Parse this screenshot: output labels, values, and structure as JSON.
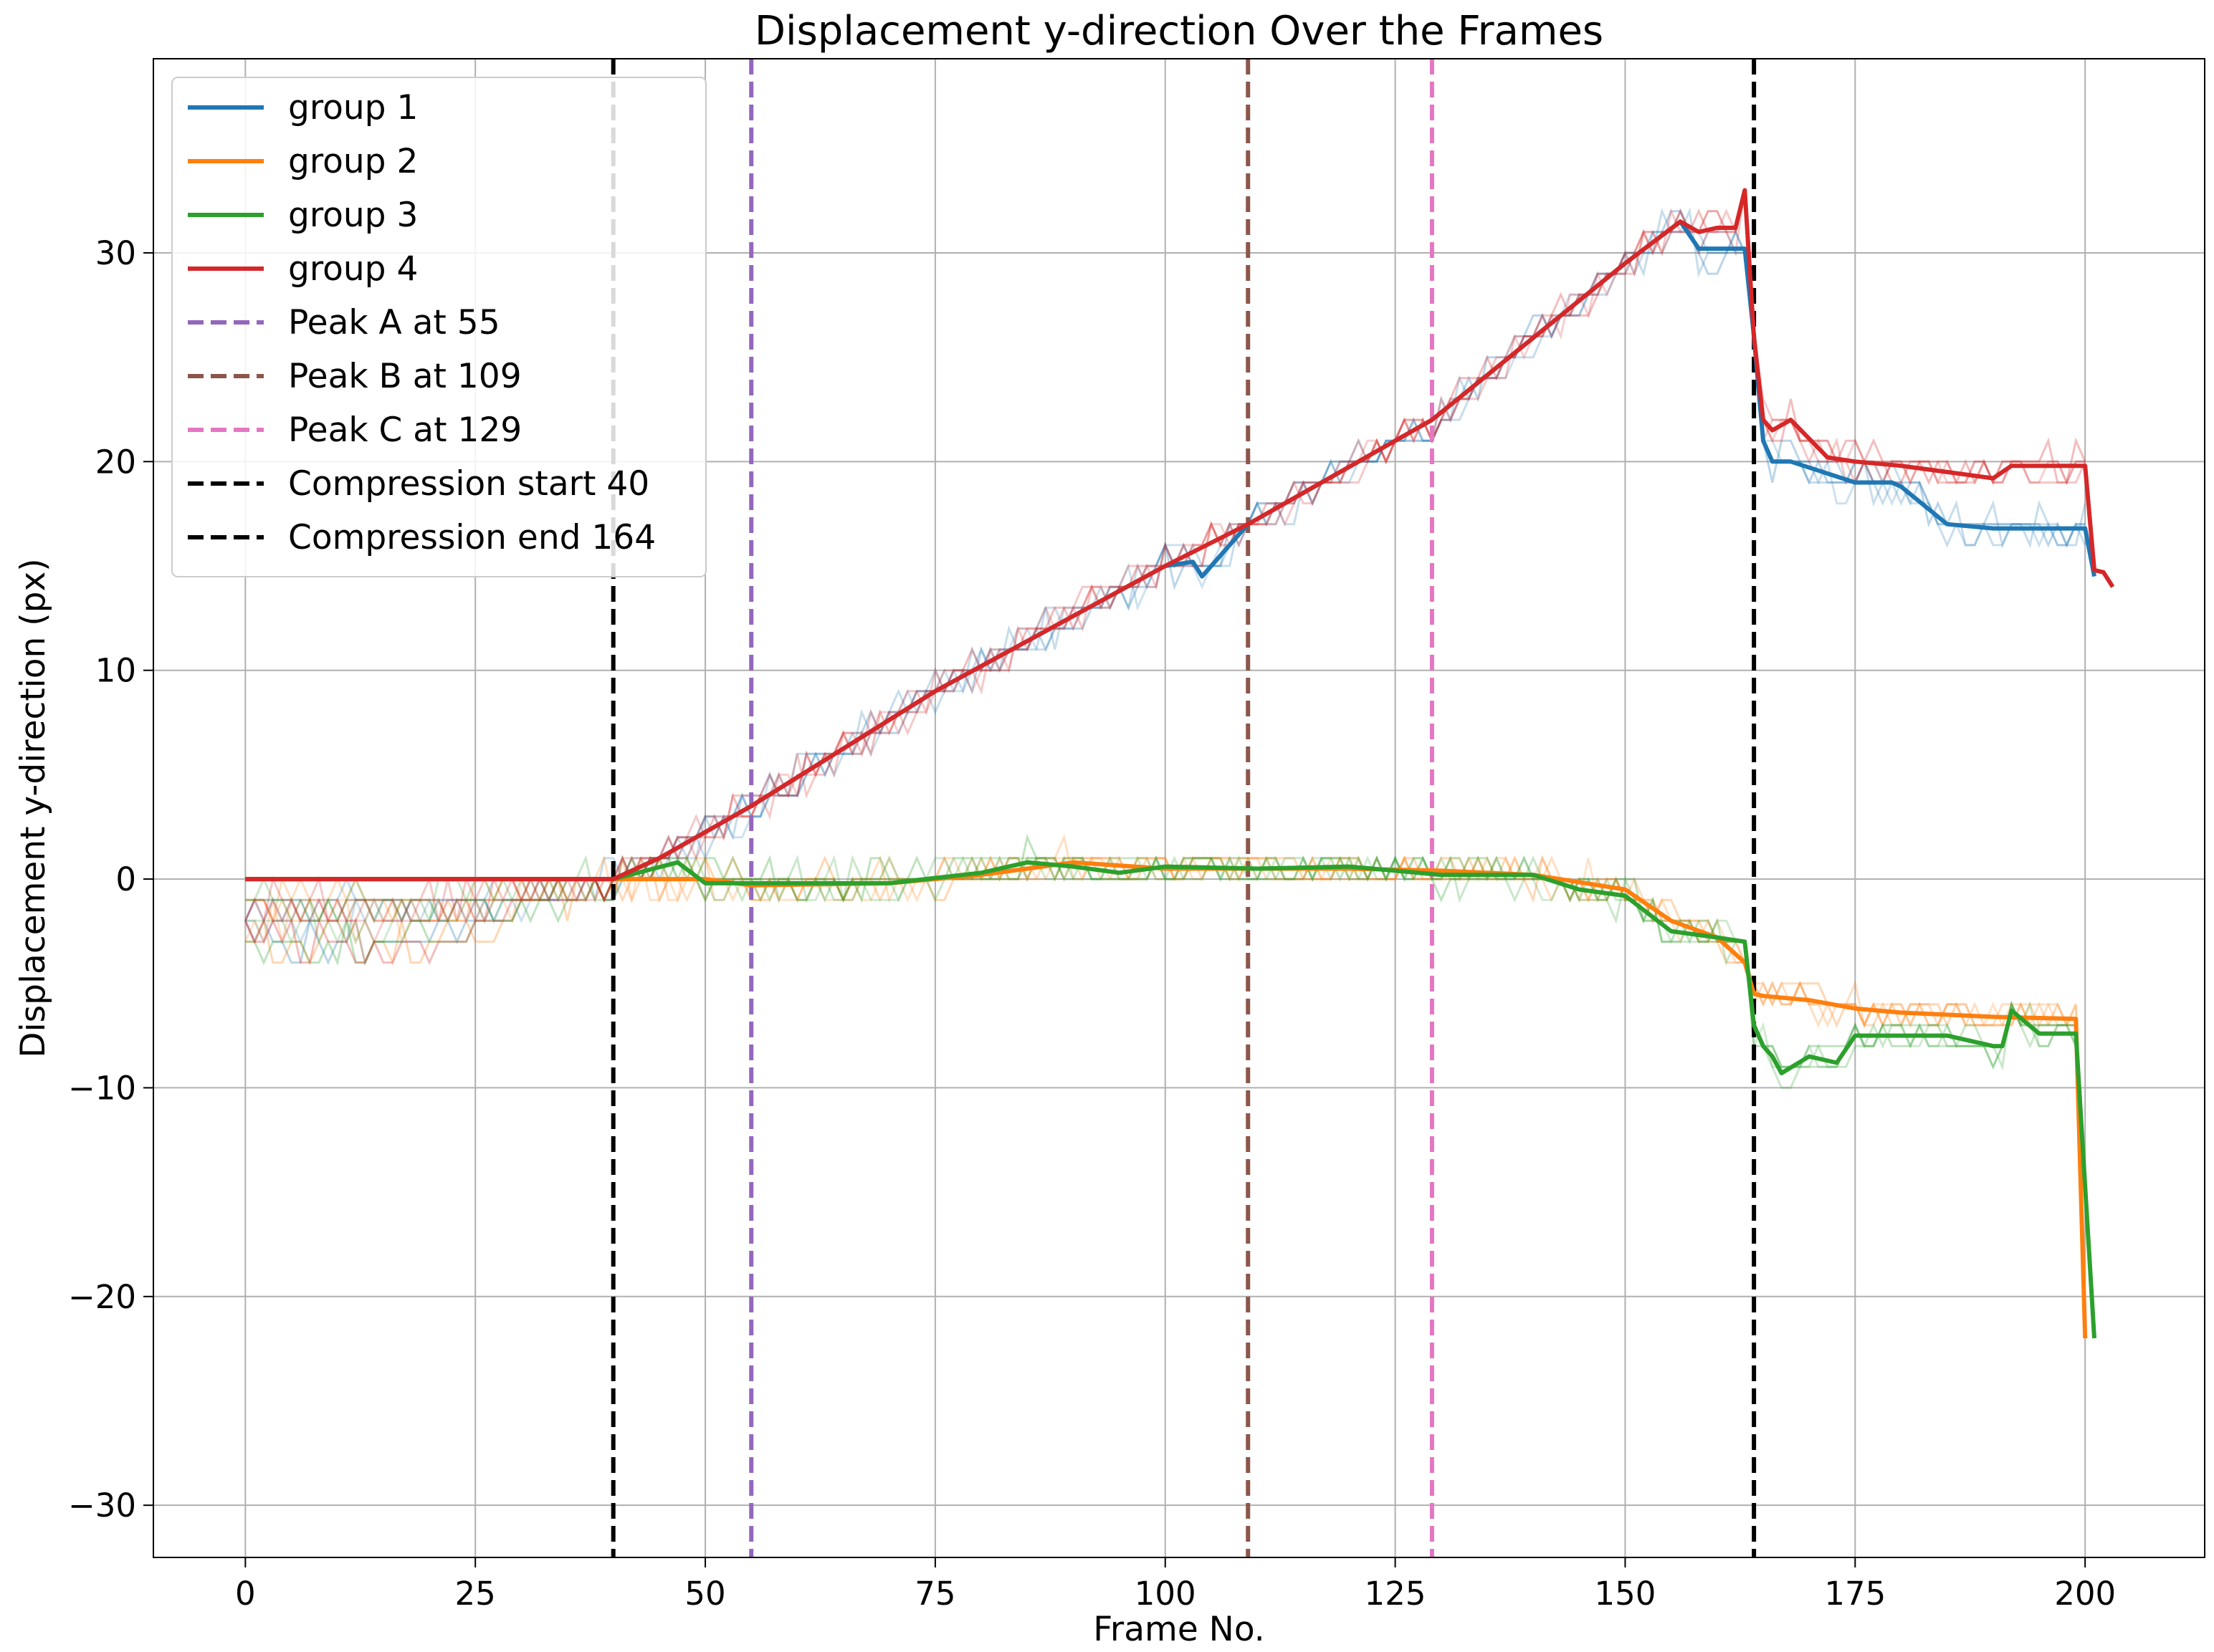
{
  "chart_data": {
    "type": "line",
    "title": "Displacement y-direction Over the Frames",
    "xlabel": "Frame No.",
    "ylabel": "Displacement y-direction (px)",
    "xlim": [
      -10,
      213
    ],
    "ylim": [
      -32.5,
      39.3
    ],
    "x_ticks": [
      0,
      25,
      50,
      75,
      100,
      125,
      150,
      175,
      200
    ],
    "y_ticks": [
      -30,
      -20,
      -10,
      0,
      10,
      20,
      30
    ],
    "y_tick_labels": [
      "−30",
      "−20",
      "−10",
      "0",
      "10",
      "20",
      "30"
    ],
    "grid": true,
    "legend_position": "upper-left",
    "colors": {
      "group1": "#1f77b4",
      "group2": "#ff7f0e",
      "group3": "#2ca02c",
      "group4": "#d62728",
      "peakA": "#9467bd",
      "peakB": "#8c564b",
      "peakC": "#e377c2",
      "compression": "#000000"
    },
    "legend": [
      {
        "label": "group 1",
        "color": "#1f77b4",
        "dashed": false
      },
      {
        "label": "group 2",
        "color": "#ff7f0e",
        "dashed": false
      },
      {
        "label": "group 3",
        "color": "#2ca02c",
        "dashed": false
      },
      {
        "label": "group 4",
        "color": "#d62728",
        "dashed": false
      },
      {
        "label": "Peak A at 55",
        "color": "#9467bd",
        "dashed": true
      },
      {
        "label": "Peak B at 109",
        "color": "#8c564b",
        "dashed": true
      },
      {
        "label": "Peak C at 129",
        "color": "#e377c2",
        "dashed": true
      },
      {
        "label": "Compression start 40",
        "color": "#000000",
        "dashed": true
      },
      {
        "label": "Compression end 164",
        "color": "#000000",
        "dashed": true
      }
    ],
    "vlines": [
      {
        "x": 40,
        "color": "#000000",
        "label": "Compression start 40"
      },
      {
        "x": 55,
        "color": "#9467bd",
        "label": "Peak A at 55"
      },
      {
        "x": 109,
        "color": "#8c564b",
        "label": "Peak B at 109"
      },
      {
        "x": 129,
        "color": "#e377c2",
        "label": "Peak C at 129"
      },
      {
        "x": 164,
        "color": "#000000",
        "label": "Compression end 164"
      }
    ],
    "series": [
      {
        "name": "group 1",
        "color": "#1f77b4",
        "x": [
          0,
          40,
          45,
          55,
          75,
          100,
          103,
          104,
          109,
          129,
          150,
          156,
          158,
          163,
          164,
          165,
          166,
          168,
          175,
          179,
          180,
          185,
          190,
          195,
          200,
          201
        ],
        "y": [
          0,
          0,
          1,
          3.5,
          9,
          15,
          15.2,
          14.5,
          17,
          22,
          29.5,
          31.5,
          30.2,
          30.2,
          26,
          21,
          20,
          20,
          19,
          19,
          18.8,
          17,
          16.8,
          16.8,
          16.8,
          14.5
        ]
      },
      {
        "name": "group 2",
        "color": "#ff7f0e",
        "x": [
          0,
          40,
          50,
          55,
          70,
          80,
          90,
          100,
          120,
          130,
          140,
          150,
          155,
          160,
          163,
          164,
          165,
          170,
          175,
          180,
          190,
          199,
          200
        ],
        "y": [
          0,
          0,
          0,
          -0.3,
          -0.2,
          0.2,
          0.8,
          0.5,
          0.5,
          0.4,
          0.2,
          -0.5,
          -2,
          -2.8,
          -4,
          -5.5,
          -5.6,
          -5.8,
          -6.2,
          -6.4,
          -6.6,
          -6.7,
          -22
        ]
      },
      {
        "name": "group 3",
        "color": "#2ca02c",
        "x": [
          0,
          40,
          47,
          50,
          55,
          70,
          80,
          85,
          90,
          95,
          100,
          110,
          120,
          125,
          130,
          140,
          145,
          150,
          155,
          160,
          163,
          164,
          165,
          166,
          167,
          170,
          173,
          175,
          180,
          185,
          190,
          191,
          192,
          195,
          199,
          201
        ],
        "y": [
          0,
          0,
          0.8,
          -0.2,
          -0.2,
          -0.2,
          0.3,
          0.8,
          0.6,
          0.3,
          0.6,
          0.5,
          0.6,
          0.4,
          0.2,
          0.2,
          -0.5,
          -0.8,
          -2.5,
          -2.8,
          -3,
          -7,
          -8,
          -8.5,
          -9.3,
          -8.5,
          -8.8,
          -7.5,
          -7.5,
          -7.5,
          -8,
          -8,
          -6.3,
          -7.4,
          -7.4,
          -22
        ]
      },
      {
        "name": "group 4",
        "color": "#d62728",
        "x": [
          0,
          40,
          45,
          55,
          75,
          100,
          109,
          129,
          150,
          156,
          158,
          160,
          162,
          163,
          164,
          165,
          166,
          168,
          172,
          175,
          180,
          185,
          190,
          192,
          195,
          200,
          201,
          202,
          203
        ],
        "y": [
          0,
          0,
          1,
          3.5,
          9,
          15,
          17,
          22,
          29.5,
          31.5,
          31,
          31.2,
          31.2,
          33,
          26,
          22,
          21.5,
          22,
          20.2,
          20,
          19.8,
          19.5,
          19.2,
          19.8,
          19.8,
          19.8,
          14.8,
          14.7,
          14
        ]
      }
    ]
  }
}
